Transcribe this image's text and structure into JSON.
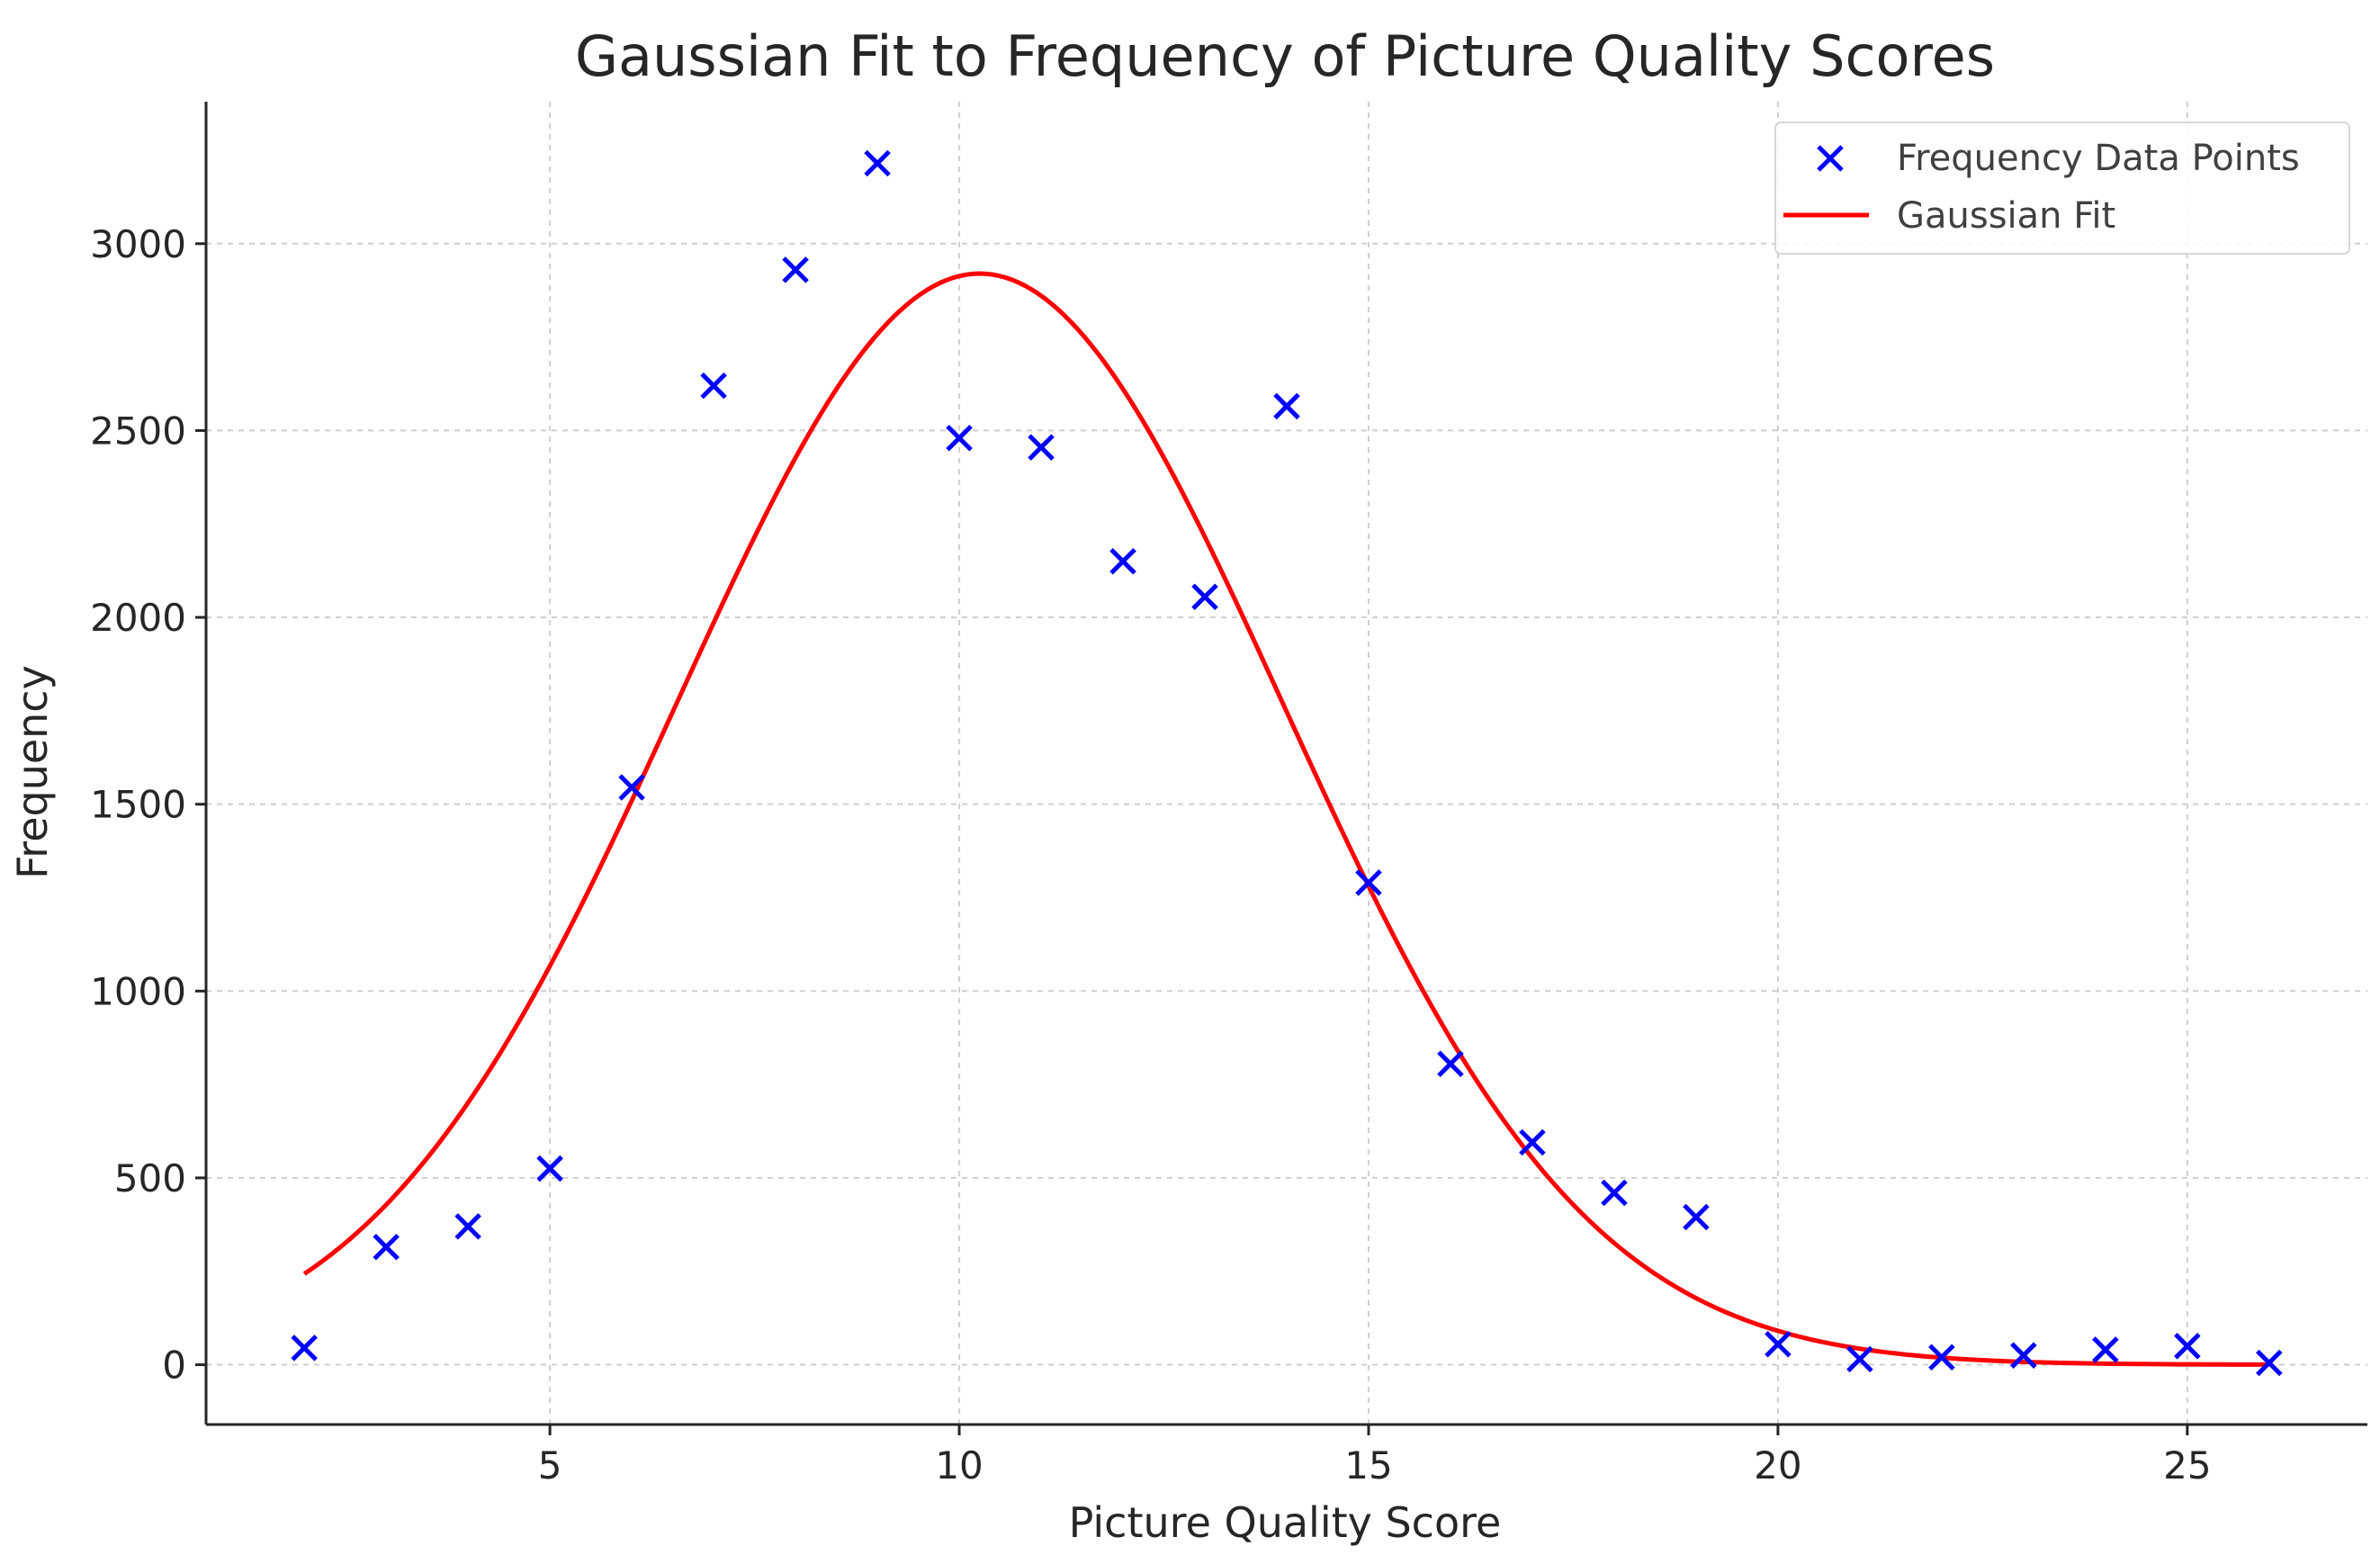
{
  "chart_data": {
    "type": "scatter",
    "title": "Gaussian Fit to Frequency of Picture Quality Scores",
    "xlabel": "Picture Quality Score",
    "ylabel": "Frequency",
    "xlim": [
      0.8,
      27.2
    ],
    "ylim": [
      -160,
      3380
    ],
    "xticks": [
      5,
      10,
      15,
      20,
      25
    ],
    "yticks": [
      0,
      500,
      1000,
      1500,
      2000,
      2500,
      3000
    ],
    "grid": true,
    "legend_position": "top-right",
    "series": [
      {
        "name": "Frequency Data Points",
        "kind": "scatter",
        "marker": "x",
        "color": "#0000ff",
        "x": [
          2,
          3,
          4,
          5,
          6,
          7,
          8,
          9,
          10,
          11,
          12,
          13,
          14,
          15,
          16,
          17,
          18,
          19,
          20,
          21,
          22,
          23,
          24,
          25,
          26
        ],
        "y": [
          45,
          315,
          370,
          525,
          1545,
          2620,
          2930,
          3215,
          2480,
          2455,
          2150,
          2055,
          2565,
          1290,
          805,
          595,
          460,
          395,
          55,
          15,
          20,
          25,
          40,
          50,
          5
        ]
      },
      {
        "name": "Gaussian Fit",
        "kind": "line",
        "color": "#ff0000",
        "fit": {
          "amplitude": 2920,
          "mean": 10.25,
          "sigma": 3.7,
          "x_range": [
            2,
            26
          ]
        }
      }
    ]
  }
}
